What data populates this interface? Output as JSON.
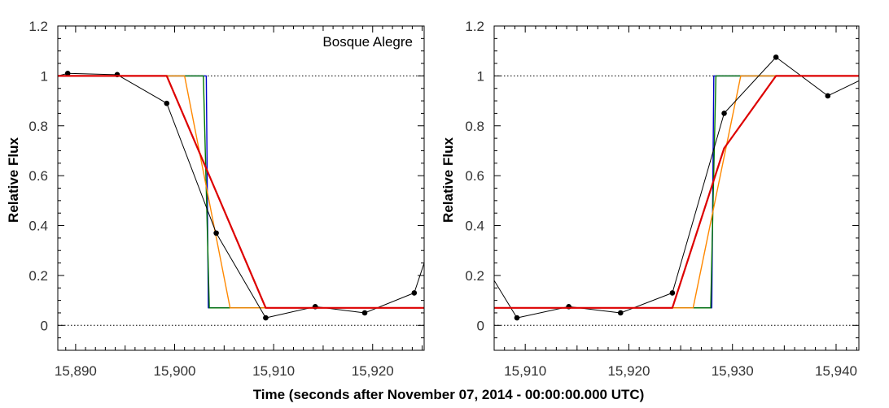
{
  "figure": {
    "xlabel": "Time (seconds after November 07, 2014 - 00:00:00.000 UTC)"
  },
  "chart_data": [
    {
      "type": "line",
      "title": "",
      "annotation": "Bosque Alegre",
      "ylabel": "Relative Flux",
      "xlim": [
        15888.2,
        15925.2
      ],
      "ylim": [
        -0.1,
        1.2
      ],
      "xticks": [
        15890,
        15900,
        15910,
        15920
      ],
      "xtick_labels": [
        "15,890",
        "15,900",
        "15,910",
        "15,920"
      ],
      "yticks": [
        0,
        0.2,
        0.4,
        0.6,
        0.8,
        1,
        1.2
      ],
      "ytick_labels": [
        "0",
        "0.2",
        "0.4",
        "0.6",
        "0.8",
        "1",
        "1.2"
      ],
      "reference_lines": [
        0,
        1
      ],
      "series": [
        {
          "color": "#000000",
          "markers": true,
          "x": [
            15889.2,
            15894.2,
            15899.2,
            15904.2,
            15909.2,
            15914.2,
            15919.2,
            15924.2
          ],
          "y": [
            1.01,
            1.005,
            0.89,
            0.37,
            0.03,
            0.075,
            0.05,
            0.13
          ],
          "lead_in": [
            15888.2,
            1.0
          ],
          "lead_out": [
            15925.2,
            0.25
          ]
        },
        {
          "color": "#0000cc",
          "x": [
            15888.2,
            15903.2,
            15903.4,
            15925.2
          ],
          "y": [
            1.0,
            1.0,
            0.07,
            0.07
          ]
        },
        {
          "color": "#007700",
          "x": [
            15888.2,
            15902.9,
            15903.5,
            15925.2
          ],
          "y": [
            1.0,
            1.0,
            0.07,
            0.07
          ]
        },
        {
          "color": "#ff8800",
          "x": [
            15888.2,
            15901.0,
            15905.6,
            15925.2
          ],
          "y": [
            1.0,
            1.0,
            0.07,
            0.07
          ]
        },
        {
          "color": "#dd0000",
          "x": [
            15888.2,
            15899.2,
            15909.2,
            15925.2
          ],
          "y": [
            1.0,
            1.0,
            0.07,
            0.07
          ]
        }
      ]
    },
    {
      "type": "line",
      "title": "",
      "annotation": "",
      "ylabel": "Relative Flux",
      "xlim": [
        15907.0,
        15942.2
      ],
      "ylim": [
        -0.1,
        1.2
      ],
      "xticks": [
        15910,
        15920,
        15930,
        15940
      ],
      "xtick_labels": [
        "15,910",
        "15,920",
        "15,930",
        "15,940"
      ],
      "yticks": [
        0,
        0.2,
        0.4,
        0.6,
        0.8,
        1,
        1.2
      ],
      "ytick_labels": [
        "0",
        "0.2",
        "0.4",
        "0.6",
        "0.8",
        "1",
        "1.2"
      ],
      "reference_lines": [
        0,
        1
      ],
      "series": [
        {
          "color": "#000000",
          "markers": true,
          "x": [
            15909.2,
            15914.2,
            15919.2,
            15924.2,
            15929.2,
            15934.2,
            15939.2
          ],
          "y": [
            0.03,
            0.075,
            0.05,
            0.13,
            0.85,
            1.075,
            0.92
          ],
          "lead_in": [
            15907.0,
            0.18
          ],
          "lead_out": [
            15942.2,
            0.98
          ]
        },
        {
          "color": "#0000cc",
          "x": [
            15907.0,
            15928.0,
            15928.2,
            15942.2
          ],
          "y": [
            0.07,
            0.07,
            1.0,
            1.0
          ]
        },
        {
          "color": "#007700",
          "x": [
            15907.0,
            15927.9,
            15928.4,
            15942.2
          ],
          "y": [
            0.07,
            0.07,
            1.0,
            1.0
          ]
        },
        {
          "color": "#ff8800",
          "x": [
            15907.0,
            15926.2,
            15930.8,
            15942.2
          ],
          "y": [
            0.07,
            0.07,
            1.0,
            1.0
          ]
        },
        {
          "color": "#dd0000",
          "x": [
            15907.0,
            15924.2,
            15929.2,
            15934.2,
            15942.2
          ],
          "y": [
            0.07,
            0.07,
            0.71,
            1.0,
            1.0
          ]
        }
      ]
    }
  ]
}
